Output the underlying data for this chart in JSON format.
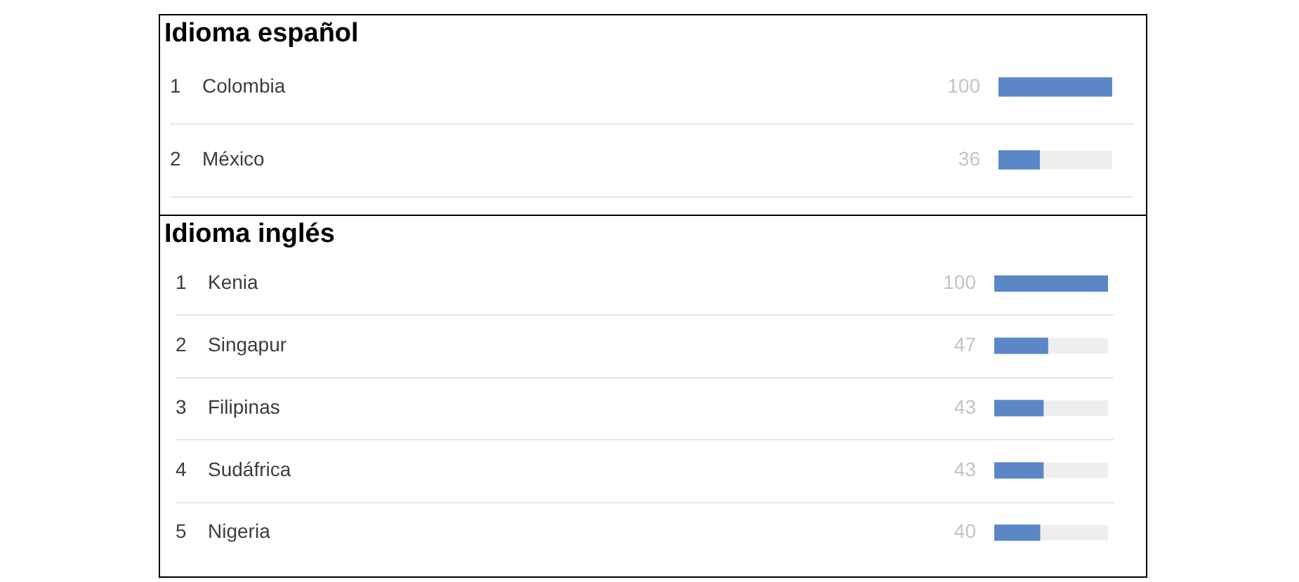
{
  "chart_data": [
    {
      "type": "bar",
      "orientation": "horizontal",
      "title": "Idioma español",
      "categories": [
        "Colombia",
        "México"
      ],
      "values": [
        100,
        36
      ],
      "color": "#5b87c7",
      "xlim": [
        0,
        100
      ],
      "data_labels": true,
      "grid": "y",
      "tick_labels": "y",
      "annotations": [
        "1",
        "2"
      ]
    },
    {
      "type": "bar",
      "orientation": "horizontal",
      "title": "Idioma inglés",
      "categories": [
        "Kenia",
        "Singapur",
        "Filipinas",
        "Sudáfrica",
        "Nigeria"
      ],
      "values": [
        100,
        47,
        43,
        43,
        40
      ],
      "color": "#5b87c7",
      "xlim": [
        0,
        100
      ],
      "data_labels": true,
      "grid": "y",
      "tick_labels": "y",
      "annotations": [
        "1",
        "2",
        "3",
        "4",
        "5"
      ]
    }
  ]
}
